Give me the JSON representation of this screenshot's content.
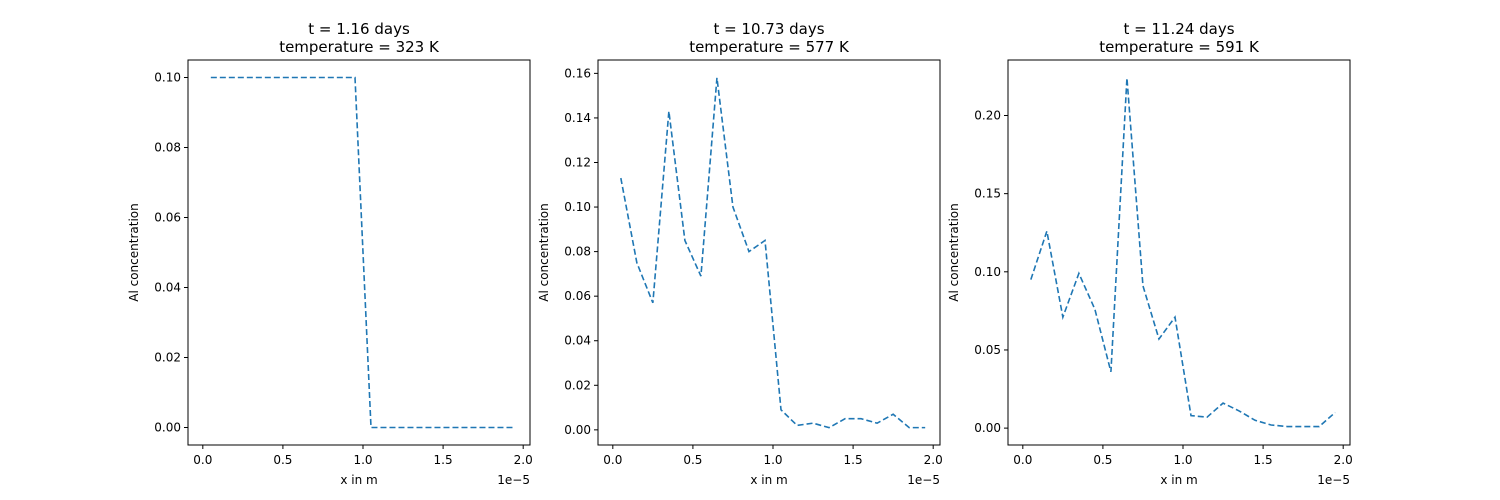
{
  "chart_data": [
    {
      "type": "line",
      "title": [
        "t = 1.16 days",
        "temperature = 323 K"
      ],
      "xlabel": "x in m",
      "ylabel": "Al concentration",
      "x_offset_label": "1e−5",
      "xlim": [
        -0.0925,
        2.0425
      ],
      "ylim": [
        -0.005,
        0.105
      ],
      "xticks": [
        0.0,
        0.5,
        1.0,
        1.5,
        2.0
      ],
      "xtick_labels": [
        "0.0",
        "0.5",
        "1.0",
        "1.5",
        "2.0"
      ],
      "yticks": [
        0.0,
        0.02,
        0.04,
        0.06,
        0.08,
        0.1
      ],
      "ytick_labels": [
        "0.00",
        "0.02",
        "0.04",
        "0.06",
        "0.08",
        "0.10"
      ],
      "grid": false,
      "line_style": "dashed",
      "color": "#1f77b4",
      "x": [
        0.05,
        0.15,
        0.25,
        0.35,
        0.45,
        0.55,
        0.65,
        0.75,
        0.85,
        0.95,
        1.05,
        1.15,
        1.25,
        1.35,
        1.45,
        1.55,
        1.65,
        1.75,
        1.85,
        1.95
      ],
      "y": [
        0.1,
        0.1,
        0.1,
        0.1,
        0.1,
        0.1,
        0.1,
        0.1,
        0.1,
        0.1,
        0.0,
        0.0,
        0.0,
        0.0,
        0.0,
        0.0,
        0.0,
        0.0,
        0.0,
        0.0
      ]
    },
    {
      "type": "line",
      "title": [
        "t = 10.73 days",
        "temperature = 577 K"
      ],
      "xlabel": "x in m",
      "ylabel": "Al concentration",
      "x_offset_label": "1e−5",
      "xlim": [
        -0.0925,
        2.0425
      ],
      "ylim": [
        -0.0068,
        0.166
      ],
      "xticks": [
        0.0,
        0.5,
        1.0,
        1.5,
        2.0
      ],
      "xtick_labels": [
        "0.0",
        "0.5",
        "1.0",
        "1.5",
        "2.0"
      ],
      "yticks": [
        0.0,
        0.02,
        0.04,
        0.06,
        0.08,
        0.1,
        0.12,
        0.14,
        0.16
      ],
      "ytick_labels": [
        "0.00",
        "0.02",
        "0.04",
        "0.06",
        "0.08",
        "0.10",
        "0.12",
        "0.14",
        "0.16"
      ],
      "grid": false,
      "line_style": "dashed",
      "color": "#1f77b4",
      "x": [
        0.05,
        0.15,
        0.25,
        0.35,
        0.45,
        0.55,
        0.65,
        0.75,
        0.85,
        0.95,
        1.05,
        1.15,
        1.25,
        1.35,
        1.45,
        1.55,
        1.65,
        1.75,
        1.85,
        1.95
      ],
      "y": [
        0.113,
        0.075,
        0.057,
        0.143,
        0.085,
        0.069,
        0.158,
        0.1,
        0.08,
        0.085,
        0.009,
        0.002,
        0.003,
        0.001,
        0.005,
        0.005,
        0.003,
        0.007,
        0.001,
        0.001
      ]
    },
    {
      "type": "line",
      "title": [
        "t = 11.24 days",
        "temperature = 591 K"
      ],
      "xlabel": "x in m",
      "ylabel": "Al concentration",
      "x_offset_label": "1e−5",
      "xlim": [
        -0.0925,
        2.0425
      ],
      "ylim": [
        -0.0108,
        0.2355
      ],
      "xticks": [
        0.0,
        0.5,
        1.0,
        1.5,
        2.0
      ],
      "xtick_labels": [
        "0.0",
        "0.5",
        "1.0",
        "1.5",
        "2.0"
      ],
      "yticks": [
        0.0,
        0.05,
        0.1,
        0.15,
        0.2
      ],
      "ytick_labels": [
        "0.00",
        "0.05",
        "0.10",
        "0.15",
        "0.20"
      ],
      "grid": false,
      "line_style": "dashed",
      "color": "#1f77b4",
      "x": [
        0.05,
        0.15,
        0.25,
        0.35,
        0.45,
        0.55,
        0.65,
        0.75,
        0.85,
        0.95,
        1.05,
        1.15,
        1.25,
        1.35,
        1.45,
        1.55,
        1.65,
        1.75,
        1.85,
        1.95
      ],
      "y": [
        0.095,
        0.126,
        0.071,
        0.099,
        0.076,
        0.036,
        0.224,
        0.091,
        0.057,
        0.071,
        0.008,
        0.007,
        0.016,
        0.011,
        0.005,
        0.002,
        0.001,
        0.001,
        0.001,
        0.01
      ]
    }
  ]
}
